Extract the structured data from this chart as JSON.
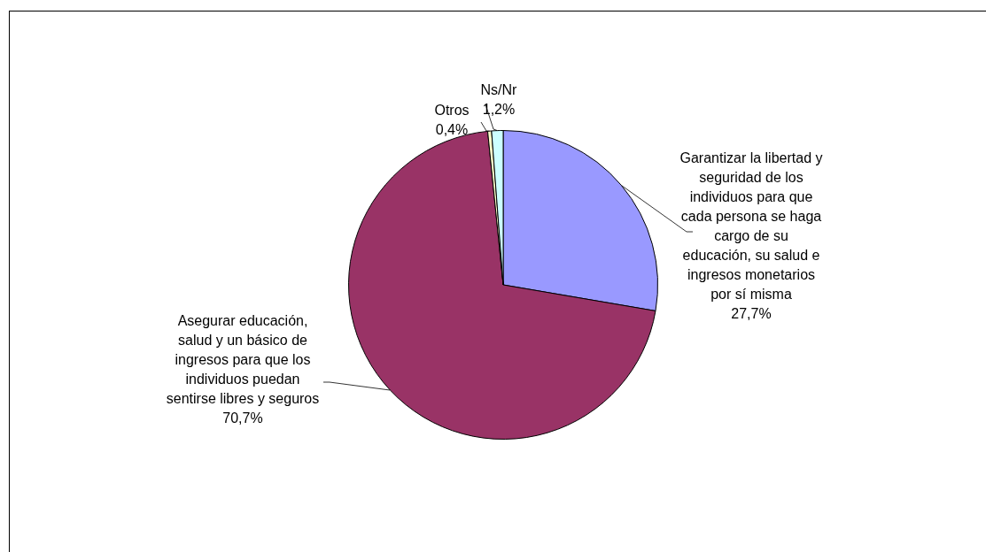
{
  "chart_data": {
    "type": "pie",
    "categories": [
      "Garantizar la libertad y seguridad de los individuos para que cada persona se haga cargo de su educación, su salud e ingresos monetarios por sí misma",
      "Asegurar educación, salud y un básico de ingresos para que los individuos puedan sentirse libres y seguros",
      "Otros",
      "Ns/Nr"
    ],
    "values": [
      27.7,
      70.7,
      0.4,
      1.2
    ],
    "value_labels": [
      "27,7%",
      "70,7%",
      "0,4%",
      "1,2%"
    ],
    "colors": [
      "#9999ff",
      "#993366",
      "#ffffcc",
      "#ccffff"
    ],
    "legend": false
  }
}
